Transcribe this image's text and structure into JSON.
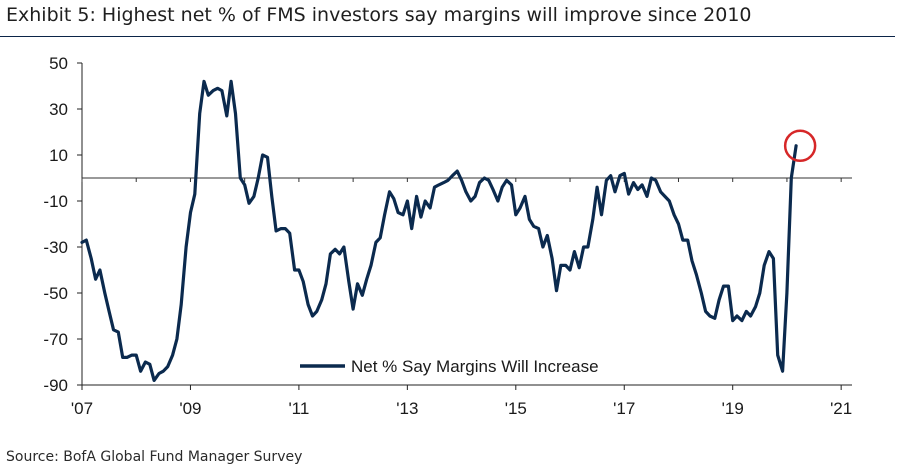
{
  "title": "Exhibit 5: Highest net % of FMS investors say margins will improve since 2010",
  "source": "Source: BofA Global Fund Manager Survey",
  "chart_data": {
    "type": "line",
    "title": "Exhibit 5: Highest net % of FMS investors say margins will improve since 2010",
    "xlabel": "",
    "ylabel": "",
    "xlim": [
      2007.0,
      2021.2
    ],
    "ylim": [
      -90,
      50
    ],
    "yticks": [
      50,
      30,
      10,
      -10,
      -30,
      -50,
      -70,
      -90
    ],
    "ytick_labels": [
      "50",
      "30",
      "10",
      "-10",
      "-30",
      "-50",
      "-70",
      "-90"
    ],
    "xticks": [
      2007,
      2009,
      2011,
      2013,
      2015,
      2017,
      2019,
      2021
    ],
    "xtick_labels": [
      "'07",
      "'09",
      "'11",
      "'13",
      "'15",
      "'17",
      "'19",
      "'21"
    ],
    "zero_line": true,
    "grid": false,
    "legend_position": "bottom-center",
    "highlight": {
      "label": "latest reading circled",
      "x": 2020.17,
      "y": 14,
      "color": "#d62728"
    },
    "line_color": "#0b2a4e",
    "series": [
      {
        "name": "Net % Say Margins Will Increase",
        "x": [
          2007.0,
          2007.08,
          2007.17,
          2007.25,
          2007.33,
          2007.42,
          2007.5,
          2007.58,
          2007.67,
          2007.75,
          2007.83,
          2007.92,
          2008.0,
          2008.08,
          2008.17,
          2008.25,
          2008.33,
          2008.42,
          2008.5,
          2008.58,
          2008.67,
          2008.75,
          2008.83,
          2008.92,
          2009.0,
          2009.08,
          2009.17,
          2009.25,
          2009.33,
          2009.42,
          2009.5,
          2009.58,
          2009.67,
          2009.75,
          2009.83,
          2009.92,
          2010.0,
          2010.08,
          2010.17,
          2010.25,
          2010.33,
          2010.42,
          2010.5,
          2010.58,
          2010.67,
          2010.75,
          2010.83,
          2010.92,
          2011.0,
          2011.08,
          2011.17,
          2011.25,
          2011.33,
          2011.42,
          2011.5,
          2011.58,
          2011.67,
          2011.75,
          2011.83,
          2011.92,
          2012.0,
          2012.08,
          2012.17,
          2012.25,
          2012.33,
          2012.42,
          2012.5,
          2012.58,
          2012.67,
          2012.75,
          2012.83,
          2012.92,
          2013.0,
          2013.08,
          2013.17,
          2013.25,
          2013.33,
          2013.42,
          2013.5,
          2013.58,
          2013.67,
          2013.75,
          2013.83,
          2013.92,
          2014.0,
          2014.08,
          2014.17,
          2014.25,
          2014.33,
          2014.42,
          2014.5,
          2014.58,
          2014.67,
          2014.75,
          2014.83,
          2014.92,
          2015.0,
          2015.08,
          2015.17,
          2015.25,
          2015.33,
          2015.42,
          2015.5,
          2015.58,
          2015.67,
          2015.75,
          2015.83,
          2015.92,
          2016.0,
          2016.08,
          2016.17,
          2016.25,
          2016.33,
          2016.42,
          2016.5,
          2016.58,
          2016.67,
          2016.75,
          2016.83,
          2016.92,
          2017.0,
          2017.08,
          2017.17,
          2017.25,
          2017.33,
          2017.42,
          2017.5,
          2017.58,
          2017.67,
          2017.75,
          2017.83,
          2017.92,
          2018.0,
          2018.08,
          2018.17,
          2018.25,
          2018.33,
          2018.42,
          2018.5,
          2018.58,
          2018.67,
          2018.75,
          2018.83,
          2018.92,
          2019.0,
          2019.08,
          2019.17,
          2019.25,
          2019.33,
          2019.42,
          2019.5,
          2019.58,
          2019.67,
          2019.75,
          2019.83,
          2019.92,
          2020.0,
          2020.08,
          2020.17
        ],
        "values": [
          -28,
          -27,
          -35,
          -44,
          -40,
          -50,
          -58,
          -66,
          -67,
          -78,
          -78,
          -77,
          -77,
          -84,
          -80,
          -81,
          -88,
          -85,
          -84,
          -82,
          -77,
          -70,
          -55,
          -30,
          -15,
          -7,
          28,
          42,
          36,
          38,
          39,
          38,
          27,
          42,
          28,
          0,
          -3,
          -11,
          -8,
          0,
          10,
          9,
          -8,
          -23,
          -22,
          -22,
          -24,
          -40,
          -40,
          -45,
          -55,
          -60,
          -58,
          -53,
          -46,
          -33,
          -31,
          -33,
          -30,
          -45,
          -57,
          -46,
          -51,
          -44,
          -38,
          -28,
          -26,
          -16,
          -6,
          -9,
          -15,
          -16,
          -10,
          -22,
          -8,
          -17,
          -10,
          -13,
          -4,
          -3,
          -2,
          -1,
          1,
          3,
          -1,
          -6,
          -10,
          -8,
          -2,
          0,
          -1,
          -5,
          -10,
          -4,
          -1,
          -3,
          -16,
          -13,
          -8,
          -18,
          -21,
          -22,
          -30,
          -25,
          -35,
          -49,
          -38,
          -38,
          -40,
          -32,
          -39,
          -30,
          -30,
          -18,
          -4,
          -16,
          -1,
          1,
          -6,
          1,
          2,
          -7,
          -2,
          -5,
          -3,
          -8,
          0,
          -1,
          -6,
          -8,
          -10,
          -16,
          -20,
          -27,
          -27,
          -36,
          -42,
          -50,
          -58,
          -60,
          -61,
          -53,
          -47,
          -47,
          -62,
          -60,
          -62,
          -58,
          -60,
          -56,
          -50,
          -38,
          -32,
          -35,
          -77,
          -84,
          -50,
          0,
          14
        ]
      }
    ]
  }
}
